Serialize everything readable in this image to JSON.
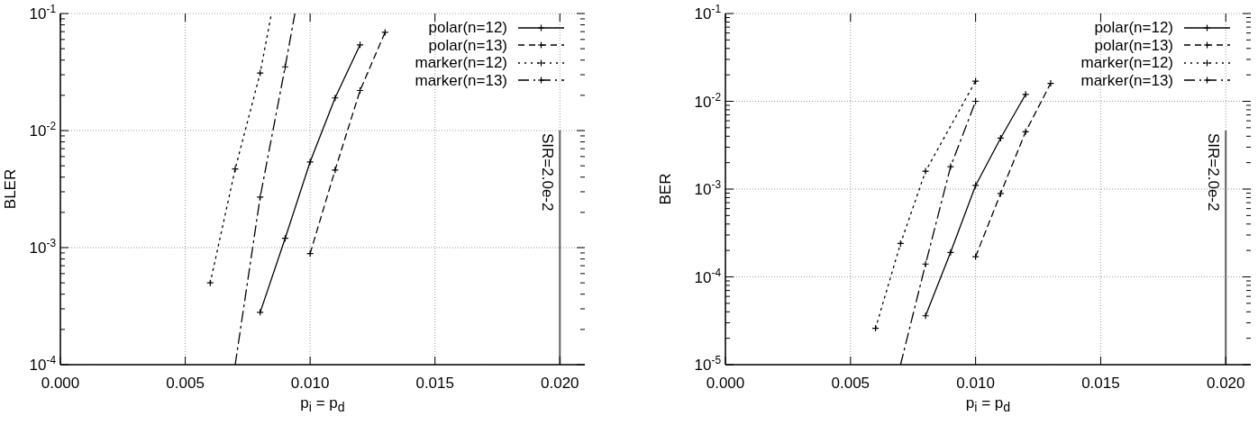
{
  "chart_data": [
    {
      "type": "line",
      "xlabel": "p$_{i}$ = p$_{d}$",
      "ylabel": "BLER",
      "log": "y",
      "grid": true,
      "legend": "top right",
      "marker": "cross",
      "xlim": [
        0,
        0.021
      ],
      "xticks": [
        {
          "value": 0,
          "label": "0.000"
        },
        {
          "value": 0.005,
          "label": "0.005"
        },
        {
          "value": 0.01,
          "label": "0.010"
        },
        {
          "value": 0.015,
          "label": "0.015"
        },
        {
          "value": 0.02,
          "label": "0.020"
        }
      ],
      "ylim": [
        0.0001,
        0.1
      ],
      "yticks": [
        {
          "value": 0.0001,
          "label": "10$^{-4}$"
        },
        {
          "value": 0.0002,
          "label": null
        },
        {
          "value": 0.0003,
          "label": null
        },
        {
          "value": 0.0004,
          "label": null
        },
        {
          "value": 0.0005,
          "label": null
        },
        {
          "value": 0.0006,
          "label": null
        },
        {
          "value": 0.0007,
          "label": null
        },
        {
          "value": 0.0008,
          "label": null
        },
        {
          "value": 0.0009,
          "label": null
        },
        {
          "value": 0.001,
          "label": "10$^{-3}$"
        },
        {
          "value": 0.002,
          "label": null
        },
        {
          "value": 0.003,
          "label": null
        },
        {
          "value": 0.004,
          "label": null
        },
        {
          "value": 0.005,
          "label": null
        },
        {
          "value": 0.006,
          "label": null
        },
        {
          "value": 0.007,
          "label": null
        },
        {
          "value": 0.008,
          "label": null
        },
        {
          "value": 0.009,
          "label": null
        },
        {
          "value": 0.01,
          "label": "10$^{-2}$"
        },
        {
          "value": 0.02,
          "label": null
        },
        {
          "value": 0.03,
          "label": null
        },
        {
          "value": 0.04,
          "label": null
        },
        {
          "value": 0.05,
          "label": null
        },
        {
          "value": 0.06,
          "label": null
        },
        {
          "value": 0.07,
          "label": null
        },
        {
          "value": 0.08,
          "label": null
        },
        {
          "value": 0.09,
          "label": null
        },
        {
          "value": 0.1,
          "label": "10$^{-1}$"
        }
      ],
      "series": [
        {
          "name": "polar(n=12)",
          "color": "#000000",
          "line_style": "solid",
          "x": [
            0.008,
            0.009,
            0.01,
            0.011,
            0.012
          ],
          "values": [
            0.00028,
            0.0012,
            0.0054,
            0.019,
            0.054
          ]
        },
        {
          "name": "polar(n=13)",
          "color": "#000000",
          "line_style": "dashed",
          "x": [
            0.01,
            0.011,
            0.012,
            0.013
          ],
          "values": [
            0.00089,
            0.0046,
            0.022,
            0.069
          ]
        },
        {
          "name": "marker(n=12)",
          "color": "#000000",
          "line_style": "dotted",
          "x": [
            0.006,
            0.007,
            0.008,
            0.00845
          ],
          "values": [
            0.0005,
            0.0047,
            0.031,
            0.1
          ]
        },
        {
          "name": "marker(n=13)",
          "color": "#000000",
          "line_style": "dashdot",
          "x": [
            0.007,
            0.008,
            0.009,
            0.00939
          ],
          "values": [
            0.0001,
            0.0027,
            0.035,
            0.1
          ]
        }
      ],
      "ref_lines": [
        {
          "axis": "x",
          "value": 0.02,
          "label": "SIR=2.0e-2",
          "color": "#606060"
        }
      ]
    },
    {
      "type": "line",
      "xlabel": "p$_{i}$ = p$_{d}$",
      "ylabel": "BER",
      "log": "y",
      "grid": true,
      "legend": "top right",
      "marker": "cross",
      "xlim": [
        0,
        0.021
      ],
      "xticks": [
        {
          "value": 0,
          "label": "0.000"
        },
        {
          "value": 0.005,
          "label": "0.005"
        },
        {
          "value": 0.01,
          "label": "0.010"
        },
        {
          "value": 0.015,
          "label": "0.015"
        },
        {
          "value": 0.02,
          "label": "0.020"
        }
      ],
      "ylim": [
        1e-05,
        0.1
      ],
      "yticks": [
        {
          "value": 1e-05,
          "label": "10$^{-5}$"
        },
        {
          "value": 2e-05,
          "label": null
        },
        {
          "value": 3e-05,
          "label": null
        },
        {
          "value": 4e-05,
          "label": null
        },
        {
          "value": 5e-05,
          "label": null
        },
        {
          "value": 6e-05,
          "label": null
        },
        {
          "value": 7e-05,
          "label": null
        },
        {
          "value": 8e-05,
          "label": null
        },
        {
          "value": 9e-05,
          "label": null
        },
        {
          "value": 0.0001,
          "label": "10$^{-4}$"
        },
        {
          "value": 0.0002,
          "label": null
        },
        {
          "value": 0.0003,
          "label": null
        },
        {
          "value": 0.0004,
          "label": null
        },
        {
          "value": 0.0005,
          "label": null
        },
        {
          "value": 0.0006,
          "label": null
        },
        {
          "value": 0.0007,
          "label": null
        },
        {
          "value": 0.0008,
          "label": null
        },
        {
          "value": 0.0009,
          "label": null
        },
        {
          "value": 0.001,
          "label": "10$^{-3}$"
        },
        {
          "value": 0.002,
          "label": null
        },
        {
          "value": 0.003,
          "label": null
        },
        {
          "value": 0.004,
          "label": null
        },
        {
          "value": 0.005,
          "label": null
        },
        {
          "value": 0.006,
          "label": null
        },
        {
          "value": 0.007,
          "label": null
        },
        {
          "value": 0.008,
          "label": null
        },
        {
          "value": 0.009,
          "label": null
        },
        {
          "value": 0.01,
          "label": "10$^{-2}$"
        },
        {
          "value": 0.02,
          "label": null
        },
        {
          "value": 0.03,
          "label": null
        },
        {
          "value": 0.04,
          "label": null
        },
        {
          "value": 0.05,
          "label": null
        },
        {
          "value": 0.06,
          "label": null
        },
        {
          "value": 0.07,
          "label": null
        },
        {
          "value": 0.08,
          "label": null
        },
        {
          "value": 0.09,
          "label": null
        },
        {
          "value": 0.1,
          "label": "10$^{-1}$"
        }
      ],
      "series": [
        {
          "name": "polar(n=12)",
          "color": "#000000",
          "line_style": "solid",
          "x": [
            0.008,
            0.009,
            0.01,
            0.011,
            0.012
          ],
          "values": [
            3.6e-05,
            0.00019,
            0.0011,
            0.0038,
            0.012
          ]
        },
        {
          "name": "polar(n=13)",
          "color": "#000000",
          "line_style": "dashed",
          "x": [
            0.01,
            0.011,
            0.012,
            0.013
          ],
          "values": [
            0.00017,
            0.00089,
            0.0045,
            0.016
          ]
        },
        {
          "name": "marker(n=12)",
          "color": "#000000",
          "line_style": "dotted",
          "x": [
            0.006,
            0.007,
            0.008,
            0.01
          ],
          "values": [
            2.6e-05,
            0.00024,
            0.0016,
            0.017
          ]
        },
        {
          "name": "marker(n=13)",
          "color": "#000000",
          "line_style": "dashdot",
          "x": [
            0.007,
            0.008,
            0.009,
            0.01
          ],
          "values": [
            1e-05,
            0.00014,
            0.0018,
            0.01
          ]
        }
      ],
      "ref_lines": [
        {
          "axis": "x",
          "value": 0.02,
          "label": "SIR=2.0e-2",
          "color": "#606060"
        }
      ]
    }
  ]
}
